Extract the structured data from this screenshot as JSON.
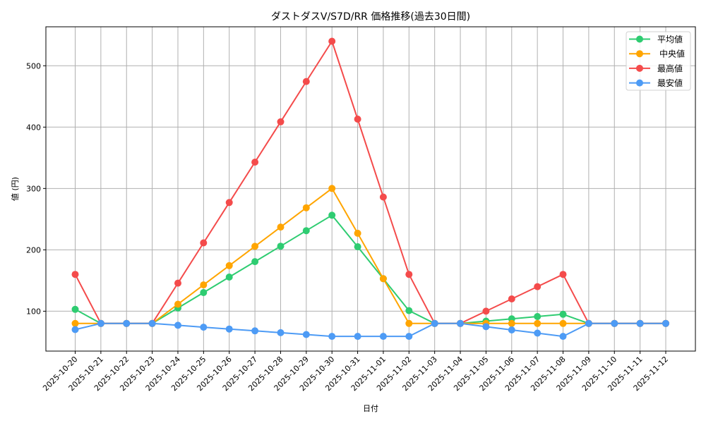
{
  "chart_data": {
    "type": "line",
    "title": "ダストダスV/S7D/RR 価格推移(過去30日間)",
    "xlabel": "日付",
    "ylabel": "値 (円)",
    "ylim": [
      35,
      563.5
    ],
    "yticks": [
      100,
      200,
      300,
      400,
      500
    ],
    "grid": true,
    "legend_position": "upper right",
    "categories": [
      "2025-10-20",
      "2025-10-21",
      "2025-10-22",
      "2025-10-23",
      "2025-10-24",
      "2025-10-25",
      "2025-10-26",
      "2025-10-27",
      "2025-10-28",
      "2025-10-29",
      "2025-10-30",
      "2025-10-31",
      "2025-11-01",
      "2025-11-02",
      "2025-11-03",
      "2025-11-04",
      "2025-11-05",
      "2025-11-06",
      "2025-11-07",
      "2025-11-08",
      "2025-11-09",
      "2025-11-10",
      "2025-11-11",
      "2025-11-12"
    ],
    "series": [
      {
        "name": "平均値",
        "color": "#2ecc71",
        "values": [
          103,
          80,
          80,
          80,
          105.2,
          130.4,
          155.6,
          180.8,
          206,
          231.2,
          256.4,
          205,
          153,
          101,
          80,
          80,
          83.8,
          87.5,
          91.3,
          95,
          80,
          80,
          80,
          80
        ]
      },
      {
        "name": "中央値",
        "color": "#ffa500",
        "values": [
          80,
          80,
          80,
          80,
          111.4,
          142.9,
          174.3,
          205.7,
          237.1,
          268.6,
          300,
          227,
          153,
          80,
          80,
          80,
          80,
          80,
          80,
          80,
          80,
          80,
          80,
          80
        ]
      },
      {
        "name": "最高値",
        "color": "#f44b4b",
        "values": [
          160,
          80,
          80,
          80,
          145.7,
          211.4,
          277.1,
          342.9,
          408.6,
          474.3,
          540,
          413,
          286,
          160,
          80,
          80,
          100,
          120,
          140,
          160,
          80,
          80,
          80,
          80
        ]
      },
      {
        "name": "最安値",
        "color": "#4d9bf5",
        "values": [
          70,
          80,
          80,
          80,
          77,
          74,
          71,
          68,
          65,
          62,
          59,
          59,
          59,
          59,
          80,
          80,
          74.8,
          69.5,
          64.3,
          59,
          80,
          80,
          80,
          80
        ]
      }
    ]
  }
}
